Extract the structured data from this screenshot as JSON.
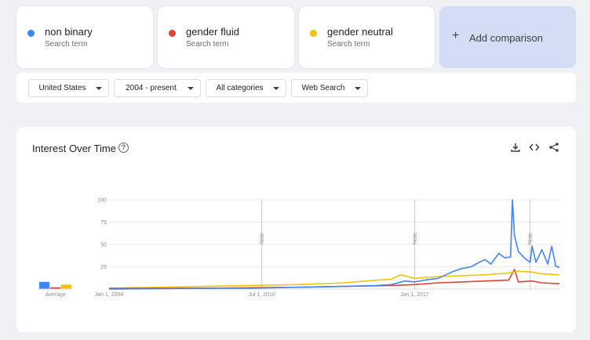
{
  "terms": [
    {
      "name": "non binary",
      "sub": "Search term",
      "color": "#4285f4"
    },
    {
      "name": "gender fluid",
      "sub": "Search term",
      "color": "#db4437"
    },
    {
      "name": "gender neutral",
      "sub": "Search term",
      "color": "#f4c20d"
    }
  ],
  "add_comparison": {
    "icon": "plus-icon",
    "label": "Add comparison"
  },
  "filters": [
    {
      "label": "United States",
      "icon": "caret-down-icon"
    },
    {
      "label": "2004 - present",
      "icon": "caret-down-icon"
    },
    {
      "label": "All categories",
      "icon": "caret-down-icon"
    },
    {
      "label": "Web Search",
      "icon": "caret-down-icon"
    }
  ],
  "chart": {
    "title": "Interest Over Time",
    "help_icon": "help-icon",
    "tools": [
      "download-icon",
      "embed-icon",
      "share-icon"
    ],
    "average_label": "Average",
    "note_label": "Note"
  },
  "chart_data": {
    "type": "line",
    "xlim": [
      "2004-01-01",
      "2023-03-01"
    ],
    "ylim": [
      0,
      100
    ],
    "y_ticks": [
      25,
      50,
      75,
      100
    ],
    "x_ticks": [
      {
        "date": "2004-01-01",
        "label": "Jan 1, 2004"
      },
      {
        "date": "2010-07-01",
        "label": "Jul 1, 2010"
      },
      {
        "date": "2017-01-01",
        "label": "Jan 1, 2017"
      }
    ],
    "notes": [
      "2010-07-01",
      "2017-01-01",
      "2021-12-01"
    ],
    "grid": true,
    "averages": [
      {
        "series": "non binary",
        "value": 8
      },
      {
        "series": "gender fluid",
        "value": 2
      },
      {
        "series": "gender neutral",
        "value": 5
      }
    ],
    "series": [
      {
        "name": "non binary",
        "color": "#4285f4",
        "points": [
          [
            "2004-01-01",
            1
          ],
          [
            "2006-01-01",
            1
          ],
          [
            "2008-01-01",
            1
          ],
          [
            "2010-01-01",
            1
          ],
          [
            "2012-01-01",
            2
          ],
          [
            "2014-01-01",
            3
          ],
          [
            "2015-06-01",
            4
          ],
          [
            "2016-01-01",
            5
          ],
          [
            "2016-08-01",
            9
          ],
          [
            "2017-01-01",
            8
          ],
          [
            "2017-06-01",
            10
          ],
          [
            "2018-01-01",
            12
          ],
          [
            "2018-08-01",
            19
          ],
          [
            "2019-01-01",
            23
          ],
          [
            "2019-06-01",
            25
          ],
          [
            "2019-10-01",
            30
          ],
          [
            "2020-01-01",
            33
          ],
          [
            "2020-04-01",
            28
          ],
          [
            "2020-08-01",
            40
          ],
          [
            "2020-11-01",
            35
          ],
          [
            "2021-02-01",
            36
          ],
          [
            "2021-03-01",
            100
          ],
          [
            "2021-04-01",
            60
          ],
          [
            "2021-06-01",
            42
          ],
          [
            "2021-09-01",
            35
          ],
          [
            "2021-12-01",
            30
          ],
          [
            "2022-01-01",
            48
          ],
          [
            "2022-03-01",
            30
          ],
          [
            "2022-06-01",
            44
          ],
          [
            "2022-09-01",
            28
          ],
          [
            "2022-11-01",
            48
          ],
          [
            "2023-01-01",
            26
          ],
          [
            "2023-03-01",
            24
          ]
        ]
      },
      {
        "name": "gender fluid",
        "color": "#db4437",
        "points": [
          [
            "2004-01-01",
            0
          ],
          [
            "2008-01-01",
            1
          ],
          [
            "2012-01-01",
            2
          ],
          [
            "2014-01-01",
            3
          ],
          [
            "2016-01-01",
            4
          ],
          [
            "2017-01-01",
            5
          ],
          [
            "2018-01-01",
            7
          ],
          [
            "2019-01-01",
            8
          ],
          [
            "2020-01-01",
            9
          ],
          [
            "2021-01-01",
            10
          ],
          [
            "2021-04-01",
            22
          ],
          [
            "2021-06-01",
            8
          ],
          [
            "2022-01-01",
            9
          ],
          [
            "2022-06-01",
            7
          ],
          [
            "2023-03-01",
            6
          ]
        ]
      },
      {
        "name": "gender neutral",
        "color": "#f4c20d",
        "points": [
          [
            "2004-01-01",
            1
          ],
          [
            "2008-01-01",
            3
          ],
          [
            "2010-01-01",
            4
          ],
          [
            "2012-01-01",
            5
          ],
          [
            "2014-01-01",
            7
          ],
          [
            "2015-06-01",
            10
          ],
          [
            "2016-01-01",
            11
          ],
          [
            "2016-06-01",
            16
          ],
          [
            "2017-01-01",
            12
          ],
          [
            "2018-01-01",
            14
          ],
          [
            "2019-01-01",
            15
          ],
          [
            "2020-01-01",
            16
          ],
          [
            "2021-01-01",
            18
          ],
          [
            "2021-06-01",
            20
          ],
          [
            "2022-01-01",
            19
          ],
          [
            "2022-06-01",
            17
          ],
          [
            "2023-03-01",
            16
          ]
        ]
      }
    ]
  }
}
